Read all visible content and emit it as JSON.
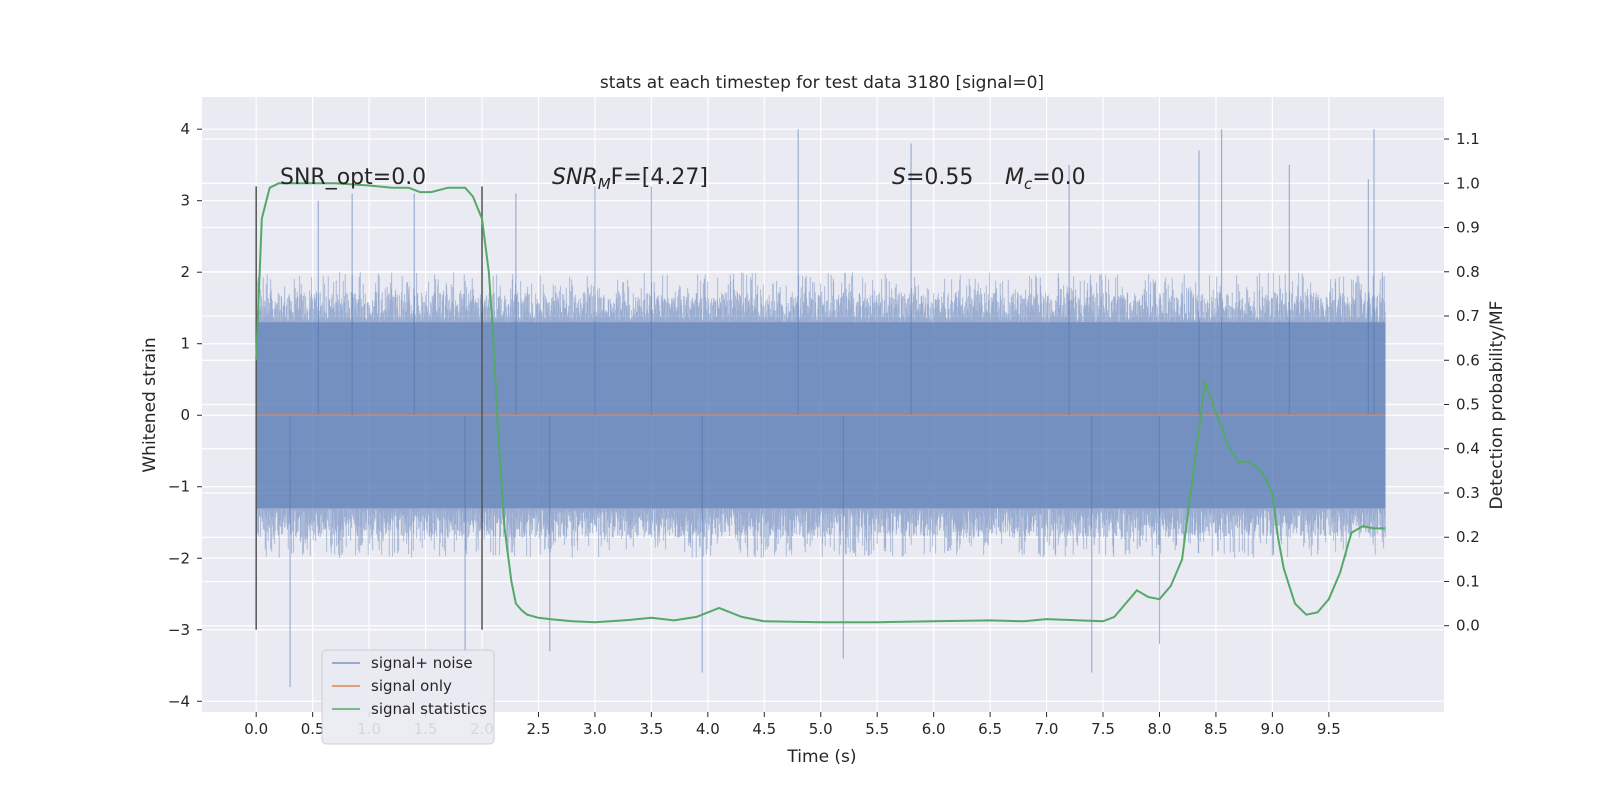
{
  "chart_data": {
    "type": "line",
    "title": "stats at each timestep for test data 3180 [signal=0]",
    "xlabel": "Time (s)",
    "ylabel": "Whitened strain",
    "ylabel_right": "Detection probability/MF",
    "xlim": [
      -0.48,
      10.52
    ],
    "ylim": [
      -4.15,
      4.45
    ],
    "ylim_right": [
      -0.195,
      1.195
    ],
    "xticks": [
      "0.0",
      "0.5",
      "1.0",
      "1.5",
      "2.0",
      "2.5",
      "3.0",
      "3.5",
      "4.0",
      "4.5",
      "5.0",
      "5.5",
      "6.0",
      "6.5",
      "7.0",
      "7.5",
      "8.0",
      "8.5",
      "9.0",
      "9.5"
    ],
    "yticks": [
      "4",
      "3",
      "2",
      "1",
      "0",
      "−1",
      "−2",
      "−3",
      "−4"
    ],
    "yticks_right": [
      "1.1",
      "1.0",
      "0.9",
      "0.8",
      "0.7",
      "0.6",
      "0.5",
      "0.4",
      "0.3",
      "0.2",
      "0.1",
      "0.0"
    ],
    "grid": true,
    "legend_placement": "lower-left",
    "annotations": {
      "snr_opt": "SNR_opt=0.0",
      "snr_mf_label": "SNR",
      "snr_mf_sub": "M",
      "snr_mf_value": "F=[4.27]",
      "s_label": "S",
      "s_value": "=0.55",
      "mc_label": "M",
      "mc_sub": "c",
      "mc_value": "=0.0"
    },
    "window_markers": {
      "x": [
        0.0,
        2.0
      ],
      "y_range": [
        -3.0,
        3.2
      ]
    },
    "series": [
      {
        "name": "signal+ noise",
        "color": "#4c72b0",
        "opacity": 0.5,
        "x_range": [
          0.0,
          10.0
        ],
        "band_dense": [
          -1.3,
          1.3
        ],
        "typical_peak_max": 2.0,
        "typical_trough_min": -2.0,
        "spikes": [
          {
            "x": 0.3,
            "y": -3.8
          },
          {
            "x": 0.55,
            "y": 3.0
          },
          {
            "x": 0.85,
            "y": 3.1
          },
          {
            "x": 1.4,
            "y": 3.1
          },
          {
            "x": 1.85,
            "y": -3.3
          },
          {
            "x": 2.3,
            "y": 3.1
          },
          {
            "x": 2.6,
            "y": -3.3
          },
          {
            "x": 3.0,
            "y": 3.2
          },
          {
            "x": 3.5,
            "y": 3.2
          },
          {
            "x": 3.95,
            "y": -3.6
          },
          {
            "x": 4.8,
            "y": 4.0
          },
          {
            "x": 5.2,
            "y": -3.4
          },
          {
            "x": 5.8,
            "y": 3.8
          },
          {
            "x": 7.2,
            "y": 3.5
          },
          {
            "x": 7.4,
            "y": -3.6
          },
          {
            "x": 8.0,
            "y": -3.2
          },
          {
            "x": 8.35,
            "y": 3.7
          },
          {
            "x": 8.55,
            "y": 4.0
          },
          {
            "x": 9.15,
            "y": 3.5
          },
          {
            "x": 9.85,
            "y": 3.3
          },
          {
            "x": 9.9,
            "y": 4.0
          }
        ]
      },
      {
        "name": "signal only",
        "color": "#dd8452",
        "x": [
          0.0,
          10.0
        ],
        "y": [
          0.0,
          0.0
        ]
      },
      {
        "name": "signal statistics",
        "color": "#55a868",
        "axis": "right",
        "x": [
          0.0,
          0.05,
          0.12,
          0.2,
          0.3,
          0.5,
          0.7,
          1.0,
          1.2,
          1.35,
          1.45,
          1.55,
          1.7,
          1.85,
          1.92,
          2.0,
          2.06,
          2.1,
          2.14,
          2.2,
          2.26,
          2.3,
          2.35,
          2.4,
          2.5,
          2.6,
          2.8,
          3.0,
          3.3,
          3.5,
          3.7,
          3.9,
          4.1,
          4.3,
          4.5,
          5.0,
          5.5,
          6.0,
          6.5,
          6.8,
          7.0,
          7.5,
          7.6,
          7.7,
          7.8,
          7.9,
          8.0,
          8.1,
          8.2,
          8.25,
          8.3,
          8.35,
          8.4,
          8.45,
          8.5,
          8.55,
          8.6,
          8.7,
          8.8,
          8.9,
          9.0,
          9.05,
          9.1,
          9.15,
          9.2,
          9.3,
          9.4,
          9.5,
          9.6,
          9.7,
          9.8,
          9.9,
          10.0
        ],
        "y": [
          0.6,
          0.92,
          0.99,
          1.0,
          1.0,
          1.0,
          1.0,
          0.995,
          0.99,
          0.99,
          0.98,
          0.98,
          0.99,
          0.99,
          0.97,
          0.92,
          0.8,
          0.65,
          0.45,
          0.22,
          0.1,
          0.05,
          0.035,
          0.025,
          0.018,
          0.015,
          0.01,
          0.008,
          0.013,
          0.018,
          0.012,
          0.02,
          0.04,
          0.02,
          0.01,
          0.008,
          0.008,
          0.01,
          0.012,
          0.01,
          0.015,
          0.01,
          0.02,
          0.05,
          0.08,
          0.065,
          0.06,
          0.09,
          0.15,
          0.25,
          0.35,
          0.44,
          0.55,
          0.52,
          0.48,
          0.45,
          0.41,
          0.37,
          0.37,
          0.35,
          0.3,
          0.2,
          0.13,
          0.09,
          0.05,
          0.025,
          0.03,
          0.06,
          0.12,
          0.21,
          0.225,
          0.22,
          0.22
        ]
      }
    ]
  }
}
